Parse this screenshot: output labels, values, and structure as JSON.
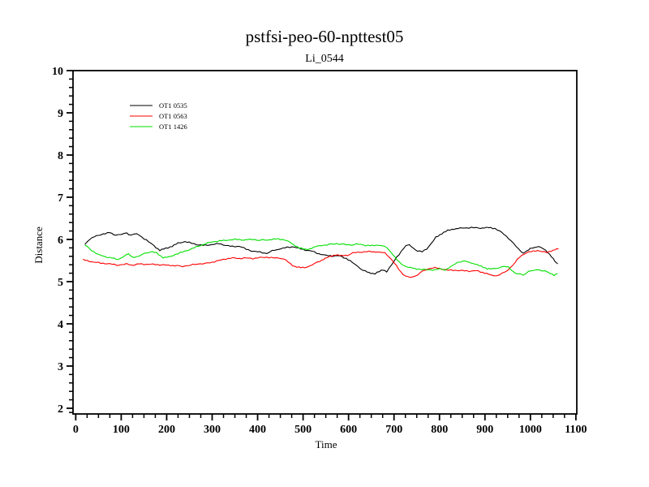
{
  "page": {
    "background": "#ffffff",
    "frame_color": "#000000"
  },
  "chart_data": {
    "type": "line",
    "title": "pstfsi-peo-60-npttest05",
    "subtitle": "Li_0544",
    "xlabel": "Time",
    "ylabel": "Distance",
    "xlim": [
      -6,
      1102
    ],
    "ylim": [
      1.865,
      10
    ],
    "x_ticks_major": [
      0,
      100,
      200,
      300,
      400,
      500,
      600,
      700,
      800,
      900,
      1000,
      1100
    ],
    "x_minor_step": 25,
    "y_ticks_major": [
      2,
      3,
      4,
      5,
      6,
      7,
      8,
      9,
      10
    ],
    "y_minor_step": 0.2,
    "grid": false,
    "legend_position": "upper-left-inside",
    "series": [
      {
        "name": "OT1 0535",
        "color": "#000000",
        "points": [
          [
            20,
            5.88
          ],
          [
            32,
            6.02
          ],
          [
            45,
            6.08
          ],
          [
            60,
            6.13
          ],
          [
            75,
            6.16
          ],
          [
            88,
            6.1
          ],
          [
            100,
            6.12
          ],
          [
            112,
            6.15
          ],
          [
            122,
            6.1
          ],
          [
            134,
            6.14
          ],
          [
            146,
            6.05
          ],
          [
            160,
            5.95
          ],
          [
            172,
            5.85
          ],
          [
            185,
            5.74
          ],
          [
            198,
            5.79
          ],
          [
            212,
            5.84
          ],
          [
            225,
            5.91
          ],
          [
            240,
            5.95
          ],
          [
            255,
            5.91
          ],
          [
            270,
            5.87
          ],
          [
            285,
            5.86
          ],
          [
            300,
            5.88
          ],
          [
            315,
            5.9
          ],
          [
            330,
            5.86
          ],
          [
            345,
            5.83
          ],
          [
            360,
            5.84
          ],
          [
            375,
            5.77
          ],
          [
            390,
            5.72
          ],
          [
            405,
            5.7
          ],
          [
            420,
            5.67
          ],
          [
            432,
            5.73
          ],
          [
            446,
            5.77
          ],
          [
            460,
            5.8
          ],
          [
            476,
            5.83
          ],
          [
            490,
            5.79
          ],
          [
            505,
            5.75
          ],
          [
            520,
            5.72
          ],
          [
            535,
            5.66
          ],
          [
            550,
            5.62
          ],
          [
            565,
            5.61
          ],
          [
            580,
            5.61
          ],
          [
            595,
            5.55
          ],
          [
            608,
            5.46
          ],
          [
            620,
            5.36
          ],
          [
            632,
            5.27
          ],
          [
            645,
            5.21
          ],
          [
            658,
            5.19
          ],
          [
            668,
            5.24
          ],
          [
            676,
            5.28
          ],
          [
            684,
            5.24
          ],
          [
            695,
            5.4
          ],
          [
            706,
            5.58
          ],
          [
            716,
            5.72
          ],
          [
            726,
            5.85
          ],
          [
            734,
            5.87
          ],
          [
            742,
            5.8
          ],
          [
            752,
            5.72
          ],
          [
            762,
            5.71
          ],
          [
            772,
            5.78
          ],
          [
            782,
            5.9
          ],
          [
            792,
            6.05
          ],
          [
            805,
            6.14
          ],
          [
            818,
            6.21
          ],
          [
            832,
            6.25
          ],
          [
            850,
            6.27
          ],
          [
            870,
            6.28
          ],
          [
            890,
            6.27
          ],
          [
            908,
            6.28
          ],
          [
            922,
            6.26
          ],
          [
            932,
            6.2
          ],
          [
            942,
            6.12
          ],
          [
            952,
            6.03
          ],
          [
            963,
            5.9
          ],
          [
            974,
            5.77
          ],
          [
            984,
            5.68
          ],
          [
            992,
            5.72
          ],
          [
            1000,
            5.78
          ],
          [
            1010,
            5.82
          ],
          [
            1018,
            5.83
          ],
          [
            1028,
            5.78
          ],
          [
            1038,
            5.7
          ],
          [
            1046,
            5.6
          ],
          [
            1054,
            5.48
          ],
          [
            1060,
            5.42
          ]
        ]
      },
      {
        "name": "OT1 0563",
        "color": "#ff0000",
        "points": [
          [
            16,
            5.52
          ],
          [
            35,
            5.47
          ],
          [
            55,
            5.44
          ],
          [
            75,
            5.42
          ],
          [
            95,
            5.39
          ],
          [
            112,
            5.42
          ],
          [
            126,
            5.39
          ],
          [
            140,
            5.42
          ],
          [
            155,
            5.41
          ],
          [
            170,
            5.41
          ],
          [
            185,
            5.4
          ],
          [
            200,
            5.39
          ],
          [
            218,
            5.38
          ],
          [
            235,
            5.36
          ],
          [
            252,
            5.39
          ],
          [
            268,
            5.42
          ],
          [
            285,
            5.43
          ],
          [
            300,
            5.46
          ],
          [
            315,
            5.5
          ],
          [
            330,
            5.54
          ],
          [
            345,
            5.56
          ],
          [
            360,
            5.55
          ],
          [
            375,
            5.56
          ],
          [
            390,
            5.55
          ],
          [
            405,
            5.57
          ],
          [
            420,
            5.58
          ],
          [
            435,
            5.56
          ],
          [
            450,
            5.56
          ],
          [
            462,
            5.51
          ],
          [
            472,
            5.42
          ],
          [
            482,
            5.36
          ],
          [
            495,
            5.33
          ],
          [
            508,
            5.34
          ],
          [
            520,
            5.4
          ],
          [
            532,
            5.46
          ],
          [
            545,
            5.53
          ],
          [
            558,
            5.59
          ],
          [
            572,
            5.64
          ],
          [
            585,
            5.61
          ],
          [
            598,
            5.63
          ],
          [
            610,
            5.68
          ],
          [
            625,
            5.7
          ],
          [
            640,
            5.71
          ],
          [
            655,
            5.71
          ],
          [
            668,
            5.7
          ],
          [
            680,
            5.68
          ],
          [
            690,
            5.58
          ],
          [
            700,
            5.45
          ],
          [
            710,
            5.3
          ],
          [
            720,
            5.17
          ],
          [
            730,
            5.11
          ],
          [
            740,
            5.1
          ],
          [
            752,
            5.17
          ],
          [
            764,
            5.25
          ],
          [
            776,
            5.31
          ],
          [
            790,
            5.33
          ],
          [
            805,
            5.3
          ],
          [
            820,
            5.27
          ],
          [
            835,
            5.27
          ],
          [
            850,
            5.26
          ],
          [
            865,
            5.25
          ],
          [
            880,
            5.26
          ],
          [
            895,
            5.22
          ],
          [
            908,
            5.18
          ],
          [
            920,
            5.13
          ],
          [
            932,
            5.17
          ],
          [
            944,
            5.22
          ],
          [
            955,
            5.32
          ],
          [
            966,
            5.45
          ],
          [
            976,
            5.58
          ],
          [
            986,
            5.66
          ],
          [
            996,
            5.7
          ],
          [
            1006,
            5.72
          ],
          [
            1016,
            5.74
          ],
          [
            1026,
            5.71
          ],
          [
            1036,
            5.69
          ],
          [
            1046,
            5.73
          ],
          [
            1054,
            5.76
          ],
          [
            1062,
            5.77
          ]
        ]
      },
      {
        "name": "OT1 1426",
        "color": "#00e000",
        "points": [
          [
            20,
            5.87
          ],
          [
            35,
            5.74
          ],
          [
            50,
            5.64
          ],
          [
            65,
            5.59
          ],
          [
            80,
            5.56
          ],
          [
            93,
            5.52
          ],
          [
            105,
            5.6
          ],
          [
            116,
            5.65
          ],
          [
            128,
            5.57
          ],
          [
            140,
            5.61
          ],
          [
            152,
            5.67
          ],
          [
            164,
            5.71
          ],
          [
            178,
            5.68
          ],
          [
            192,
            5.57
          ],
          [
            205,
            5.58
          ],
          [
            220,
            5.65
          ],
          [
            235,
            5.7
          ],
          [
            250,
            5.76
          ],
          [
            265,
            5.82
          ],
          [
            280,
            5.88
          ],
          [
            295,
            5.93
          ],
          [
            312,
            5.96
          ],
          [
            330,
            5.98
          ],
          [
            350,
            6.0
          ],
          [
            370,
            5.99
          ],
          [
            388,
            6.0
          ],
          [
            405,
            5.98
          ],
          [
            422,
            5.99
          ],
          [
            440,
            6.01
          ],
          [
            455,
            6.0
          ],
          [
            465,
            5.97
          ],
          [
            478,
            5.88
          ],
          [
            492,
            5.8
          ],
          [
            505,
            5.76
          ],
          [
            515,
            5.78
          ],
          [
            528,
            5.83
          ],
          [
            542,
            5.86
          ],
          [
            558,
            5.88
          ],
          [
            574,
            5.9
          ],
          [
            590,
            5.88
          ],
          [
            606,
            5.87
          ],
          [
            622,
            5.89
          ],
          [
            638,
            5.86
          ],
          [
            652,
            5.85
          ],
          [
            666,
            5.87
          ],
          [
            680,
            5.83
          ],
          [
            692,
            5.72
          ],
          [
            702,
            5.58
          ],
          [
            712,
            5.45
          ],
          [
            722,
            5.38
          ],
          [
            732,
            5.34
          ],
          [
            745,
            5.31
          ],
          [
            760,
            5.29
          ],
          [
            775,
            5.28
          ],
          [
            790,
            5.28
          ],
          [
            800,
            5.3
          ],
          [
            812,
            5.28
          ],
          [
            825,
            5.35
          ],
          [
            840,
            5.46
          ],
          [
            852,
            5.49
          ],
          [
            865,
            5.46
          ],
          [
            878,
            5.42
          ],
          [
            892,
            5.36
          ],
          [
            905,
            5.31
          ],
          [
            918,
            5.3
          ],
          [
            930,
            5.33
          ],
          [
            942,
            5.36
          ],
          [
            952,
            5.34
          ],
          [
            962,
            5.24
          ],
          [
            972,
            5.18
          ],
          [
            984,
            5.16
          ],
          [
            996,
            5.24
          ],
          [
            1008,
            5.27
          ],
          [
            1020,
            5.28
          ],
          [
            1032,
            5.25
          ],
          [
            1042,
            5.2
          ],
          [
            1052,
            5.16
          ],
          [
            1060,
            5.19
          ]
        ]
      }
    ]
  }
}
